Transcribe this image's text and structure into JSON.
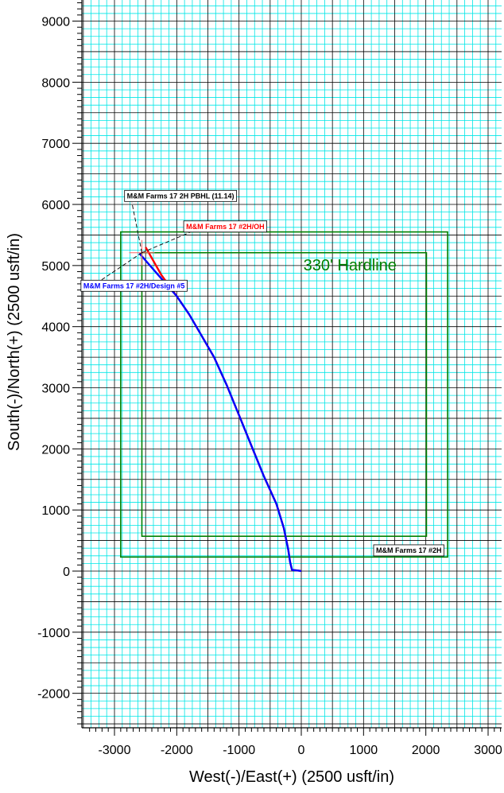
{
  "chart_data": {
    "type": "line",
    "xlabel": "West(-)/East(+) (2500 usft/in)",
    "ylabel": "South(-)/North(+) (2500 usft/in)",
    "xlim": [
      -3400,
      3250
    ],
    "ylim": [
      -2500,
      9300
    ],
    "x_ticks": [
      -3000,
      -2000,
      -1000,
      0,
      1000,
      2000,
      3000
    ],
    "y_ticks": [
      -2000,
      -1000,
      0,
      1000,
      2000,
      3000,
      4000,
      5000,
      6000,
      7000,
      8000,
      9000
    ],
    "grid": true,
    "minor_grid_step": 125,
    "major_grid_step": 500,
    "colors": {
      "minor_grid": "#00e6e6",
      "major_grid": "#000000",
      "hardline": "#008000",
      "actual": "#ff0000",
      "plan": "#0000ff"
    },
    "series": [
      {
        "name": "M&M Farms 17 #2H/OH",
        "color": "#ff0000",
        "x": [
          0,
          -30,
          -150,
          -180,
          -210,
          -280,
          -400,
          -600,
          -800,
          -1000,
          -1200,
          -1400,
          -1600,
          -1800,
          -2000,
          -2250,
          -2500
        ],
        "y": [
          0,
          5,
          20,
          150,
          350,
          700,
          1100,
          1550,
          2050,
          2550,
          3050,
          3500,
          3850,
          4200,
          4500,
          4850,
          5300
        ]
      },
      {
        "name": "M&M Farms 17 #2H/Design #5",
        "color": "#0000ff",
        "x": [
          0,
          -30,
          -150,
          -180,
          -210,
          -280,
          -400,
          -600,
          -800,
          -1000,
          -1200,
          -1400,
          -1600,
          -1800,
          -2000,
          -2300,
          -2600
        ],
        "y": [
          0,
          5,
          20,
          150,
          350,
          700,
          1100,
          1550,
          2050,
          2550,
          3050,
          3500,
          3850,
          4200,
          4500,
          4850,
          5200
        ]
      }
    ],
    "hardlines": [
      {
        "name": "outer",
        "x": [
          -2900,
          2350
        ],
        "y": [
          230,
          5550
        ]
      },
      {
        "name": "inner",
        "x": [
          -2560,
          2010
        ],
        "y": [
          570,
          5210
        ]
      }
    ],
    "annotations": [
      {
        "text": "330' Hardline",
        "x": 800,
        "y": 5000,
        "color": "#008000"
      },
      {
        "text": "M&M Farms 17 #2H",
        "x": 1200,
        "y": 300,
        "color": "#000000"
      },
      {
        "text": "M&M Farms 17 2H PBHL (11.14)",
        "x": -2800,
        "y": 6100,
        "color": "#000000"
      },
      {
        "text": "M&M Farms 17 #2H/OH",
        "x": -1850,
        "y": 5600,
        "color": "#ff0000"
      },
      {
        "text": "M&M Farms 17 #2H/Design #5",
        "x": -3500,
        "y": 4630,
        "color": "#0000ff"
      }
    ]
  }
}
